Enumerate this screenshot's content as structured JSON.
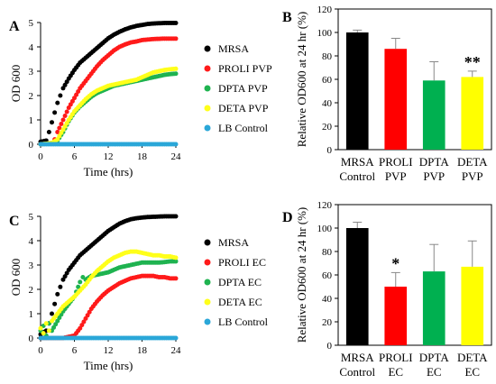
{
  "chart_data": [
    {
      "panel": "A",
      "type": "scatter",
      "xlabel": "Time (hrs)",
      "ylabel": "OD 600",
      "xlim": [
        0,
        24
      ],
      "ylim": [
        0,
        5
      ],
      "xticks": [
        "0",
        "6",
        "12",
        "18",
        "24"
      ],
      "yticks": [
        "0",
        "1",
        "2",
        "3",
        "4",
        "5"
      ],
      "legend_position": "right",
      "series": [
        {
          "name": "MRSA",
          "color": "#000000",
          "points": [
            [
              0,
              0.1
            ],
            [
              1,
              0.15
            ],
            [
              1.5,
              0.5
            ],
            [
              2,
              0.9
            ],
            [
              2.5,
              1.3
            ],
            [
              3,
              1.7
            ],
            [
              3.5,
              2.0
            ],
            [
              4,
              2.3
            ],
            [
              5,
              2.7
            ],
            [
              6,
              3.05
            ],
            [
              7,
              3.35
            ],
            [
              8,
              3.55
            ],
            [
              9,
              3.75
            ],
            [
              10,
              3.95
            ],
            [
              11,
              4.15
            ],
            [
              12,
              4.35
            ],
            [
              13,
              4.5
            ],
            [
              14,
              4.62
            ],
            [
              15,
              4.72
            ],
            [
              16,
              4.8
            ],
            [
              17,
              4.86
            ],
            [
              18,
              4.9
            ],
            [
              19,
              4.94
            ],
            [
              20,
              4.96
            ],
            [
              21,
              4.97
            ],
            [
              22,
              4.98
            ],
            [
              23,
              4.98
            ],
            [
              24,
              4.98
            ]
          ]
        },
        {
          "name": "PROLI PVP",
          "color": "#ff1a1a",
          "points": [
            [
              0,
              0
            ],
            [
              1,
              0.02
            ],
            [
              2,
              0.05
            ],
            [
              2.5,
              0.2
            ],
            [
              3,
              0.5
            ],
            [
              4,
              1.0
            ],
            [
              5,
              1.5
            ],
            [
              6,
              1.9
            ],
            [
              7,
              2.3
            ],
            [
              8,
              2.6
            ],
            [
              9,
              2.9
            ],
            [
              10,
              3.2
            ],
            [
              11,
              3.45
            ],
            [
              12,
              3.65
            ],
            [
              13,
              3.85
            ],
            [
              14,
              4.0
            ],
            [
              15,
              4.1
            ],
            [
              16,
              4.18
            ],
            [
              17,
              4.22
            ],
            [
              18,
              4.28
            ],
            [
              19,
              4.3
            ],
            [
              20,
              4.32
            ],
            [
              21,
              4.33
            ],
            [
              22,
              4.34
            ],
            [
              23,
              4.34
            ],
            [
              24,
              4.34
            ]
          ]
        },
        {
          "name": "DPTA PVP",
          "color": "#1fb350",
          "points": [
            [
              0,
              0
            ],
            [
              1,
              0.02
            ],
            [
              2,
              0.05
            ],
            [
              3,
              0.15
            ],
            [
              4,
              0.5
            ],
            [
              5,
              0.95
            ],
            [
              6,
              1.3
            ],
            [
              7,
              1.55
            ],
            [
              8,
              1.75
            ],
            [
              9,
              1.95
            ],
            [
              10,
              2.1
            ],
            [
              11,
              2.2
            ],
            [
              12,
              2.3
            ],
            [
              13,
              2.4
            ],
            [
              14,
              2.45
            ],
            [
              15,
              2.5
            ],
            [
              16,
              2.55
            ],
            [
              17,
              2.6
            ],
            [
              18,
              2.65
            ],
            [
              19,
              2.7
            ],
            [
              20,
              2.75
            ],
            [
              21,
              2.8
            ],
            [
              22,
              2.85
            ],
            [
              23,
              2.88
            ],
            [
              24,
              2.9
            ]
          ]
        },
        {
          "name": "DETA PVP",
          "color": "#ffff1a",
          "points": [
            [
              0,
              0
            ],
            [
              1,
              0.02
            ],
            [
              2,
              0.05
            ],
            [
              3,
              0.2
            ],
            [
              4,
              0.6
            ],
            [
              5,
              1.0
            ],
            [
              6,
              1.35
            ],
            [
              7,
              1.6
            ],
            [
              8,
              1.85
            ],
            [
              9,
              2.05
            ],
            [
              10,
              2.2
            ],
            [
              11,
              2.3
            ],
            [
              12,
              2.4
            ],
            [
              13,
              2.45
            ],
            [
              14,
              2.5
            ],
            [
              15,
              2.55
            ],
            [
              16,
              2.6
            ],
            [
              17,
              2.65
            ],
            [
              18,
              2.75
            ],
            [
              19,
              2.85
            ],
            [
              20,
              2.95
            ],
            [
              21,
              3.0
            ],
            [
              22,
              3.05
            ],
            [
              23,
              3.08
            ],
            [
              24,
              3.1
            ]
          ]
        },
        {
          "name": "LB Control",
          "color": "#2aa7d8",
          "points": [
            [
              0,
              0
            ],
            [
              2,
              0
            ],
            [
              4,
              0
            ],
            [
              6,
              0
            ],
            [
              8,
              0
            ],
            [
              10,
              0
            ],
            [
              12,
              0
            ],
            [
              14,
              0
            ],
            [
              16,
              0
            ],
            [
              18,
              0
            ],
            [
              20,
              0
            ],
            [
              22,
              0
            ],
            [
              24,
              0
            ]
          ]
        }
      ]
    },
    {
      "panel": "B",
      "type": "bar",
      "ylabel": "Relative OD600 at 24 hr (%)",
      "ylim": [
        0,
        120
      ],
      "yticks": [
        "0",
        "20",
        "40",
        "60",
        "80",
        "100",
        "120"
      ],
      "categories": [
        [
          "MRSA",
          "Control"
        ],
        [
          "PROLI",
          "PVP"
        ],
        [
          "DPTA",
          "PVP"
        ],
        [
          "DETA",
          "PVP"
        ]
      ],
      "values": [
        100,
        86,
        59,
        62
      ],
      "errors": [
        2,
        9,
        16,
        5
      ],
      "colors": [
        "#000000",
        "#ff0000",
        "#00b050",
        "#ffff00"
      ],
      "annotations": [
        {
          "index": 3,
          "text": "**"
        }
      ]
    },
    {
      "panel": "C",
      "type": "scatter",
      "xlabel": "Time (hrs)",
      "ylabel": "OD 600",
      "xlim": [
        0,
        24
      ],
      "ylim": [
        0,
        5
      ],
      "xticks": [
        "0",
        "6",
        "12",
        "18",
        "24"
      ],
      "yticks": [
        "0",
        "1",
        "2",
        "3",
        "4",
        "5"
      ],
      "legend_position": "right",
      "series": [
        {
          "name": "MRSA",
          "color": "#000000",
          "points": [
            [
              0,
              0.15
            ],
            [
              1,
              0.3
            ],
            [
              1.5,
              0.6
            ],
            [
              2,
              1.0
            ],
            [
              2.5,
              1.4
            ],
            [
              3,
              1.8
            ],
            [
              3.5,
              2.1
            ],
            [
              4,
              2.4
            ],
            [
              5,
              2.8
            ],
            [
              6,
              3.1
            ],
            [
              7,
              3.4
            ],
            [
              8,
              3.6
            ],
            [
              9,
              3.8
            ],
            [
              10,
              4.0
            ],
            [
              11,
              4.2
            ],
            [
              12,
              4.4
            ],
            [
              13,
              4.55
            ],
            [
              14,
              4.7
            ],
            [
              15,
              4.8
            ],
            [
              16,
              4.88
            ],
            [
              17,
              4.92
            ],
            [
              18,
              4.95
            ],
            [
              19,
              4.97
            ],
            [
              20,
              4.98
            ],
            [
              21,
              4.99
            ],
            [
              22,
              5.0
            ],
            [
              23,
              5.0
            ],
            [
              24,
              5.0
            ]
          ]
        },
        {
          "name": "PROLI EC",
          "color": "#ff1a1a",
          "points": [
            [
              0,
              0
            ],
            [
              2,
              0
            ],
            [
              4,
              0
            ],
            [
              5,
              0.05
            ],
            [
              6,
              0.1
            ],
            [
              7,
              0.4
            ],
            [
              8,
              0.8
            ],
            [
              9,
              1.2
            ],
            [
              10,
              1.5
            ],
            [
              11,
              1.75
            ],
            [
              12,
              1.95
            ],
            [
              13,
              2.1
            ],
            [
              14,
              2.25
            ],
            [
              15,
              2.35
            ],
            [
              16,
              2.45
            ],
            [
              17,
              2.5
            ],
            [
              18,
              2.55
            ],
            [
              19,
              2.55
            ],
            [
              20,
              2.55
            ],
            [
              21,
              2.5
            ],
            [
              22,
              2.5
            ],
            [
              23,
              2.45
            ],
            [
              24,
              2.45
            ]
          ]
        },
        {
          "name": "DPTA EC",
          "color": "#1fb350",
          "points": [
            [
              0,
              0.3
            ],
            [
              0.5,
              0.5
            ],
            [
              1,
              0.1
            ],
            [
              1.5,
              0.6
            ],
            [
              2,
              0.3
            ],
            [
              3,
              0.7
            ],
            [
              4,
              1.1
            ],
            [
              5,
              1.4
            ],
            [
              6,
              1.7
            ],
            [
              7,
              2.3
            ],
            [
              7.5,
              2.5
            ],
            [
              8,
              2.4
            ],
            [
              9,
              2.55
            ],
            [
              10,
              2.6
            ],
            [
              11,
              2.65
            ],
            [
              12,
              2.7
            ],
            [
              13,
              2.8
            ],
            [
              14,
              2.9
            ],
            [
              15,
              2.95
            ],
            [
              16,
              3.0
            ],
            [
              17,
              3.05
            ],
            [
              18,
              3.1
            ],
            [
              19,
              3.1
            ],
            [
              20,
              3.1
            ],
            [
              21,
              3.1
            ],
            [
              22,
              3.12
            ],
            [
              23,
              3.15
            ],
            [
              24,
              3.15
            ]
          ]
        },
        {
          "name": "DETA EC",
          "color": "#ffff1a",
          "points": [
            [
              0,
              0.4
            ],
            [
              0.5,
              0.2
            ],
            [
              1,
              0.6
            ],
            [
              1.5,
              0.3
            ],
            [
              2,
              0.7
            ],
            [
              3,
              1.0
            ],
            [
              4,
              1.3
            ],
            [
              5,
              1.5
            ],
            [
              6,
              1.7
            ],
            [
              7,
              1.95
            ],
            [
              8,
              2.2
            ],
            [
              9,
              2.5
            ],
            [
              10,
              2.75
            ],
            [
              11,
              2.95
            ],
            [
              12,
              3.15
            ],
            [
              13,
              3.3
            ],
            [
              14,
              3.4
            ],
            [
              15,
              3.5
            ],
            [
              16,
              3.55
            ],
            [
              17,
              3.55
            ],
            [
              18,
              3.5
            ],
            [
              19,
              3.45
            ],
            [
              20,
              3.4
            ],
            [
              21,
              3.4
            ],
            [
              22,
              3.35
            ],
            [
              23,
              3.35
            ],
            [
              24,
              3.3
            ]
          ]
        },
        {
          "name": "LB Control",
          "color": "#2aa7d8",
          "points": [
            [
              0,
              0
            ],
            [
              2,
              0
            ],
            [
              4,
              0
            ],
            [
              6,
              0
            ],
            [
              8,
              0
            ],
            [
              10,
              0
            ],
            [
              12,
              0
            ],
            [
              14,
              0
            ],
            [
              16,
              0
            ],
            [
              18,
              0
            ],
            [
              20,
              0
            ],
            [
              22,
              0
            ],
            [
              24,
              0
            ]
          ]
        }
      ]
    },
    {
      "panel": "D",
      "type": "bar",
      "ylabel": "Relative OD600 at 24 hr (%)",
      "ylim": [
        0,
        120
      ],
      "yticks": [
        "0",
        "20",
        "40",
        "60",
        "80",
        "100",
        "120"
      ],
      "categories": [
        [
          "MRSA",
          "Control"
        ],
        [
          "PROLI",
          "EC"
        ],
        [
          "DPTA",
          "EC"
        ],
        [
          "DETA",
          "EC"
        ]
      ],
      "values": [
        100,
        50,
        63,
        67
      ],
      "errors": [
        5,
        12,
        23,
        22
      ],
      "colors": [
        "#000000",
        "#ff0000",
        "#00b050",
        "#ffff00"
      ],
      "annotations": [
        {
          "index": 1,
          "text": "*"
        }
      ]
    }
  ]
}
